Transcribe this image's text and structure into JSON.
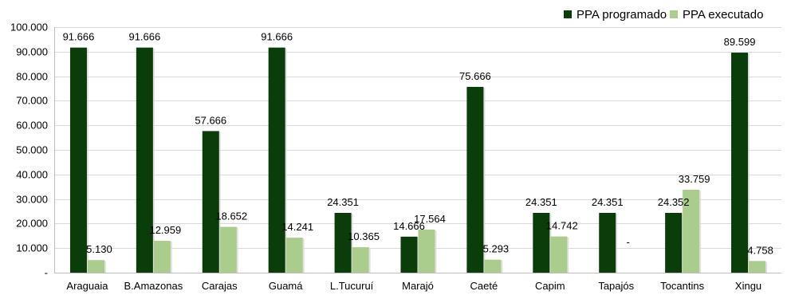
{
  "chart_data": {
    "type": "bar",
    "categories": [
      "Araguaia",
      "B.Amazonas",
      "Carajas",
      "Guamá",
      "L.Tucuruí",
      "Marajó",
      "Caeté",
      "Capim",
      "Tapajós",
      "Tocantins",
      "Xingu"
    ],
    "series": [
      {
        "name": "PPA programado",
        "color": "#0b3d0b",
        "values": [
          91666,
          91666,
          57666,
          91666,
          24351,
          14666,
          75666,
          24351,
          24351,
          24352,
          89599
        ],
        "labels": [
          "91.666",
          "91.666",
          "57.666",
          "91.666",
          "24.351",
          "14.666",
          "75.666",
          "24.351",
          "24.351",
          "24.352",
          "89.599"
        ]
      },
      {
        "name": "PPA executado",
        "color": "#aacc8c",
        "values": [
          5130,
          12959,
          18652,
          14241,
          10365,
          17564,
          5293,
          14742,
          0,
          33759,
          4758
        ],
        "labels": [
          "5.130",
          "12.959",
          "18.652",
          "14.241",
          "10.365",
          "17.564",
          "5.293",
          "14.742",
          "-",
          "33.759",
          "4.758"
        ]
      }
    ],
    "ylim": [
      0,
      100000
    ],
    "yticks": [
      0,
      10000,
      20000,
      30000,
      40000,
      50000,
      60000,
      70000,
      80000,
      90000,
      100000
    ],
    "ytick_labels": [
      "-",
      "10.000",
      "20.000",
      "30.000",
      "40.000",
      "50.000",
      "60.000",
      "70.000",
      "80.000",
      "90.000",
      "100.000"
    ],
    "grid": true,
    "legend_position": "top-right",
    "title": "",
    "xlabel": "",
    "ylabel": ""
  }
}
